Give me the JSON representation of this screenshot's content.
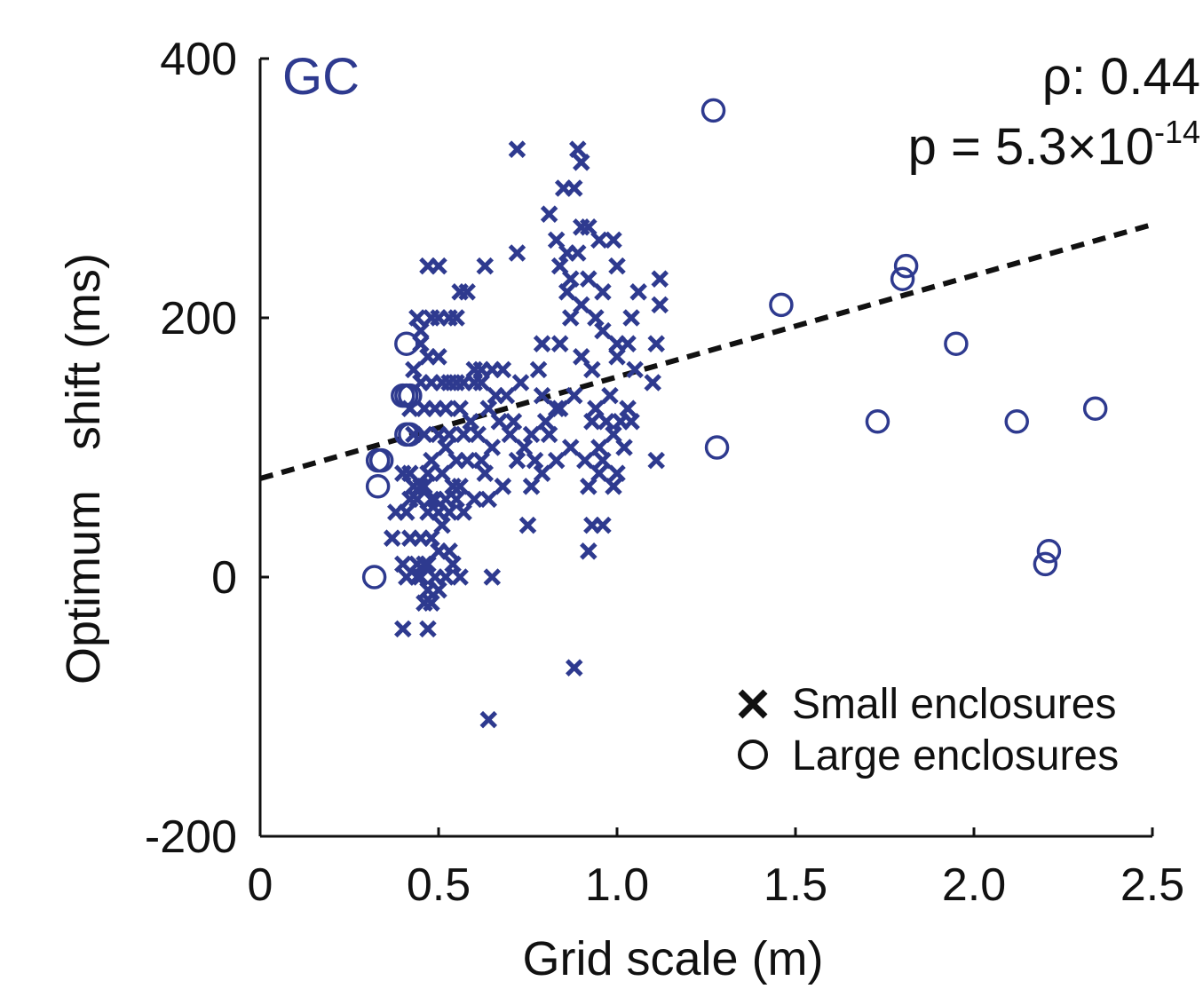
{
  "chart_data": {
    "type": "scatter",
    "panel_label": "GC",
    "xlabel": "Grid scale (m)",
    "ylabel": "Optimum   shift (ms)",
    "xlim": [
      0,
      2.5
    ],
    "ylim": [
      -200,
      400
    ],
    "x_ticks": [
      0,
      0.5,
      1.0,
      1.5,
      2.0,
      2.5
    ],
    "x_tick_labels": [
      "0",
      "0.5",
      "1.0",
      "1.5",
      "2.0",
      "2.5"
    ],
    "y_ticks": [
      -200,
      0,
      200,
      400
    ],
    "y_tick_labels": [
      "-200",
      "0",
      "200",
      "400"
    ],
    "stats": {
      "rho": "ρ: 0.44",
      "p_base": "p = 5.3×10",
      "p_exp": "-14"
    },
    "fit_line": {
      "style": "dashed",
      "x": [
        0,
        2.5
      ],
      "y": [
        76,
        272
      ]
    },
    "colors": {
      "points": "#2e3a8f",
      "fit": "#111111",
      "axes": "#111111",
      "legend_marker": "#111111",
      "panel_label": "#2e3a8f"
    },
    "legend": {
      "placement": "bottom-right",
      "entries": [
        {
          "label": "Small enclosures",
          "marker": "x"
        },
        {
          "label": "Large enclosures",
          "marker": "o"
        }
      ]
    },
    "series": [
      {
        "name": "Small enclosures",
        "marker": "x",
        "x": [
          0.72,
          0.89,
          0.9,
          0.85,
          0.88,
          0.81,
          0.9,
          0.92,
          0.95,
          0.83,
          0.86,
          0.89,
          0.99,
          0.47,
          0.5,
          0.63,
          0.72,
          0.84,
          0.87,
          1.0,
          1.12,
          1.12,
          1.06,
          1.04,
          0.56,
          0.58,
          0.92,
          0.96,
          0.86,
          0.9,
          0.44,
          0.48,
          0.5,
          0.53,
          0.55,
          0.45,
          0.87,
          0.94,
          1.11,
          0.79,
          0.84,
          0.96,
          1.0,
          1.03,
          0.45,
          0.47,
          0.5,
          0.6,
          0.62,
          0.65,
          0.68,
          0.73,
          0.78,
          0.9,
          0.93,
          1.0,
          1.05,
          1.1,
          0.43,
          0.45,
          0.48,
          0.51,
          0.53,
          0.55,
          0.57,
          0.6,
          0.62,
          0.66,
          0.69,
          0.79,
          0.84,
          0.88,
          0.94,
          0.98,
          1.03,
          0.42,
          0.46,
          0.49,
          0.52,
          0.56,
          0.59,
          0.64,
          0.67,
          0.71,
          0.76,
          0.8,
          0.83,
          0.93,
          0.97,
          1.01,
          1.04,
          0.43,
          0.46,
          0.5,
          0.53,
          0.57,
          0.61,
          0.65,
          0.7,
          0.74,
          0.81,
          0.87,
          0.95,
          0.99,
          1.02,
          0.48,
          0.52,
          0.55,
          0.58,
          0.62,
          0.72,
          0.77,
          0.83,
          0.91,
          0.96,
          1.0,
          1.11,
          0.4,
          0.42,
          0.47,
          0.51,
          0.54,
          0.56,
          0.63,
          0.68,
          0.76,
          0.79,
          0.92,
          0.95,
          0.99,
          0.43,
          0.46,
          0.49,
          0.52,
          0.55,
          0.6,
          0.64,
          0.42,
          0.45,
          0.48,
          0.5,
          0.53,
          0.57,
          0.38,
          0.41,
          0.44,
          0.47,
          0.51,
          0.75,
          0.93,
          0.96,
          0.42,
          0.45,
          0.48,
          0.53,
          0.92,
          0.37,
          0.4,
          0.44,
          0.46,
          0.5,
          0.54,
          0.41,
          0.44,
          0.47,
          0.49,
          0.52,
          0.56,
          0.65,
          0.45,
          0.47,
          0.5,
          0.46,
          0.48,
          0.4,
          0.47,
          0.88,
          0.64
        ],
        "y": [
          330,
          330,
          320,
          300,
          300,
          280,
          270,
          270,
          260,
          260,
          250,
          250,
          260,
          240,
          240,
          240,
          250,
          240,
          230,
          240,
          230,
          210,
          220,
          200,
          220,
          220,
          230,
          220,
          220,
          210,
          200,
          200,
          200,
          200,
          200,
          190,
          200,
          200,
          180,
          180,
          180,
          190,
          180,
          180,
          180,
          170,
          170,
          160,
          160,
          160,
          160,
          150,
          160,
          170,
          160,
          170,
          160,
          150,
          160,
          150,
          150,
          150,
          150,
          150,
          150,
          150,
          150,
          140,
          140,
          140,
          130,
          140,
          130,
          140,
          130,
          130,
          130,
          130,
          130,
          130,
          120,
          130,
          120,
          120,
          110,
          120,
          130,
          120,
          120,
          120,
          120,
          110,
          110,
          110,
          110,
          110,
          110,
          100,
          110,
          100,
          110,
          100,
          100,
          110,
          100,
          90,
          100,
          90,
          90,
          90,
          90,
          90,
          90,
          90,
          90,
          80,
          90,
          80,
          80,
          80,
          80,
          70,
          70,
          80,
          70,
          70,
          80,
          70,
          80,
          70,
          70,
          70,
          60,
          60,
          60,
          60,
          60,
          60,
          70,
          60,
          50,
          50,
          50,
          50,
          50,
          60,
          50,
          40,
          40,
          40,
          40,
          30,
          30,
          30,
          20,
          20,
          30,
          10,
          10,
          10,
          20,
          10,
          0,
          0,
          10,
          0,
          0,
          0,
          0,
          0,
          -10,
          -10,
          -20,
          -20,
          -40,
          -40,
          -70,
          -110
        ]
      },
      {
        "name": "Large enclosures",
        "marker": "o",
        "x": [
          1.27,
          1.81,
          1.8,
          1.46,
          0.41,
          1.95,
          0.4,
          0.41,
          0.42,
          1.73,
          1.28,
          2.12,
          2.34,
          0.33,
          0.34,
          0.33,
          0.32,
          2.21,
          2.2,
          0.42,
          0.41
        ],
        "y": [
          360,
          240,
          230,
          210,
          180,
          180,
          140,
          140,
          110,
          120,
          100,
          120,
          130,
          90,
          90,
          70,
          0,
          20,
          10,
          140,
          110
        ]
      }
    ]
  }
}
